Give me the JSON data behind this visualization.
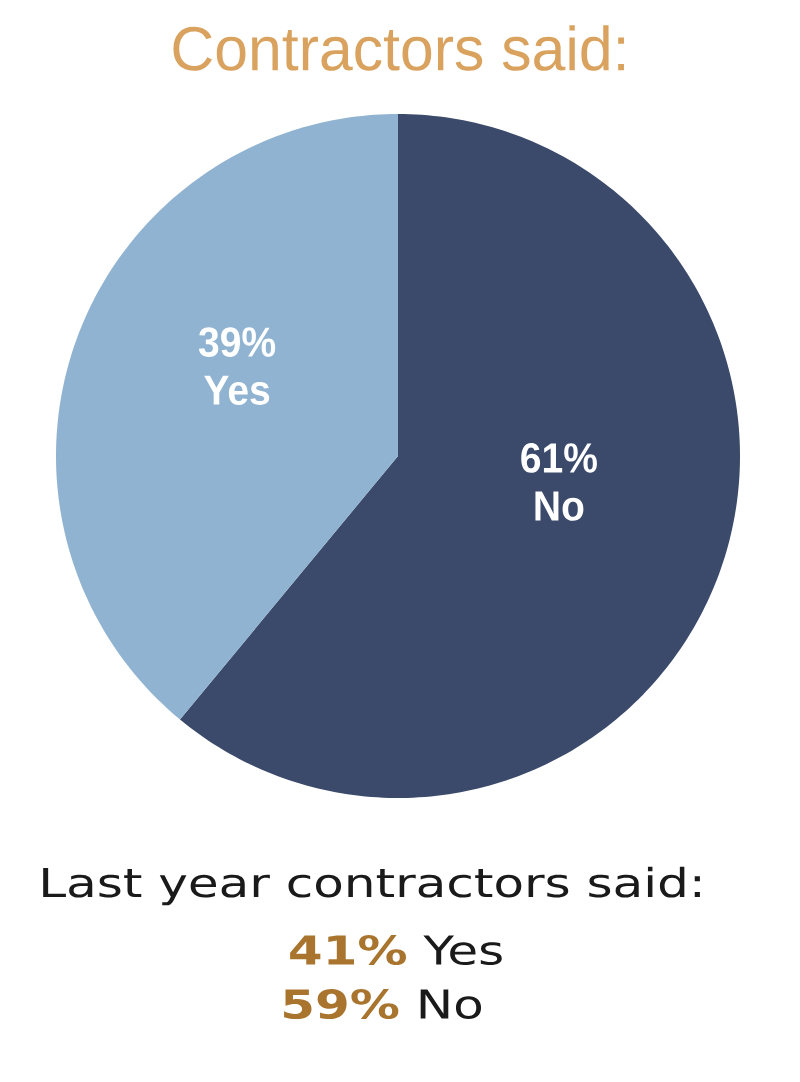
{
  "chart_data": {
    "type": "pie",
    "title": "Contractors said:",
    "categories": [
      "No",
      "Yes"
    ],
    "values": [
      61,
      39
    ],
    "colors": [
      "#3b4a6b",
      "#8fb3d1"
    ],
    "value_labels": [
      "61%",
      "39%"
    ],
    "annotations": [
      "Last year contractors said:",
      "**41%** Yes",
      "**59%** No"
    ]
  }
}
